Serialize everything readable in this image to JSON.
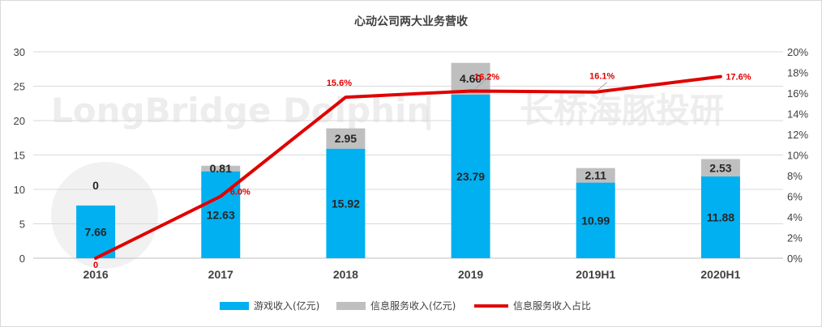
{
  "chart_data": {
    "type": "bar",
    "title": "心动公司两大业务营收",
    "categories": [
      "2016",
      "2017",
      "2018",
      "2019",
      "2019H1",
      "2020H1"
    ],
    "series": [
      {
        "name": "游戏收入(亿元)",
        "kind": "stacked-bar",
        "axis": "left",
        "color": "#00b0f0",
        "values": [
          7.66,
          12.63,
          15.92,
          23.79,
          10.99,
          11.88
        ],
        "labels": [
          "7.66",
          "12.63",
          "15.92",
          "23.79",
          "10.99",
          "11.88"
        ]
      },
      {
        "name": "信息服务收入(亿元)",
        "kind": "stacked-bar",
        "axis": "left",
        "color": "#bfbfbf",
        "values": [
          0,
          0.81,
          2.95,
          4.6,
          2.11,
          2.53
        ],
        "labels": [
          "0",
          "0.81",
          "2.95",
          "4.60",
          "2.11",
          "2.53"
        ]
      },
      {
        "name": "信息服务收入占比",
        "kind": "line",
        "axis": "right",
        "color": "#e00000",
        "values": [
          0,
          6.0,
          15.6,
          16.2,
          16.1,
          17.6
        ],
        "labels": [
          "0",
          "6.0%",
          "15.6%",
          "16.2%",
          "16.1%",
          "17.6%"
        ]
      }
    ],
    "y_left": {
      "min": 0,
      "max": 30,
      "ticks": [
        "0",
        "5",
        "10",
        "15",
        "20",
        "25",
        "30"
      ]
    },
    "y_right": {
      "min": 0,
      "max": 20,
      "ticks": [
        "0%",
        "2%",
        "4%",
        "6%",
        "8%",
        "10%",
        "12%",
        "14%",
        "16%",
        "18%",
        "20%"
      ]
    },
    "grid": true,
    "legend_position": "bottom"
  },
  "watermark": {
    "text_en": "LongBridge Dolphin",
    "separator": "|",
    "text_cn": "长桥海豚投研"
  }
}
